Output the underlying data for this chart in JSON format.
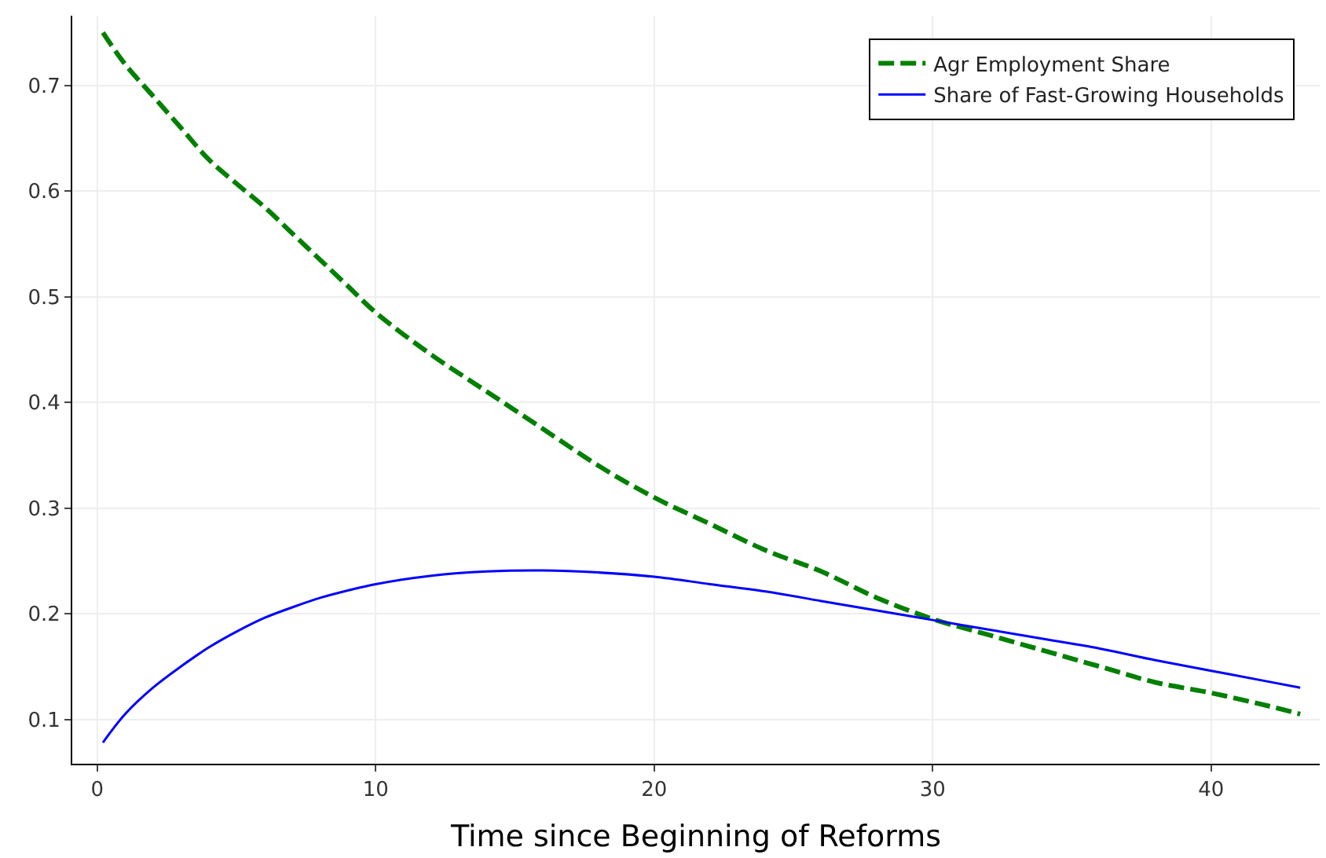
{
  "chart_data": {
    "type": "line",
    "xlabel": "Time since Beginning of Reforms",
    "x": [
      0.2,
      1,
      2,
      3,
      4,
      5,
      6,
      7,
      8,
      9,
      10,
      12,
      14,
      16,
      18,
      20,
      22,
      24,
      26,
      28,
      30,
      32,
      34,
      36,
      38,
      40,
      42,
      43.2
    ],
    "series": [
      {
        "name": "Agr Employment Share",
        "color": "#008000",
        "line_style": "dashed",
        "values": [
          0.75,
          0.72,
          0.69,
          0.66,
          0.63,
          0.607,
          0.585,
          0.56,
          0.535,
          0.51,
          0.485,
          0.445,
          0.41,
          0.375,
          0.34,
          0.31,
          0.285,
          0.26,
          0.24,
          0.215,
          0.195,
          0.18,
          0.165,
          0.15,
          0.135,
          0.125,
          0.113,
          0.105
        ]
      },
      {
        "name": "Share of Fast-Growing Households",
        "color": "#0000ff",
        "line_style": "solid",
        "values": [
          0.078,
          0.105,
          0.13,
          0.15,
          0.168,
          0.183,
          0.196,
          0.206,
          0.215,
          0.222,
          0.228,
          0.236,
          0.24,
          0.241,
          0.239,
          0.235,
          0.228,
          0.221,
          0.212,
          0.203,
          0.194,
          0.185,
          0.176,
          0.167,
          0.156,
          0.146,
          0.136,
          0.13
        ]
      }
    ],
    "xlim": [
      -0.9,
      43.9
    ],
    "xticks": [
      0,
      10,
      20,
      30,
      40
    ],
    "ylim": [
      0.058,
      0.766
    ],
    "yticks": [
      0.1,
      0.2,
      0.3,
      0.4,
      0.5,
      0.6,
      0.7
    ],
    "grid": true,
    "legend": "top right"
  }
}
